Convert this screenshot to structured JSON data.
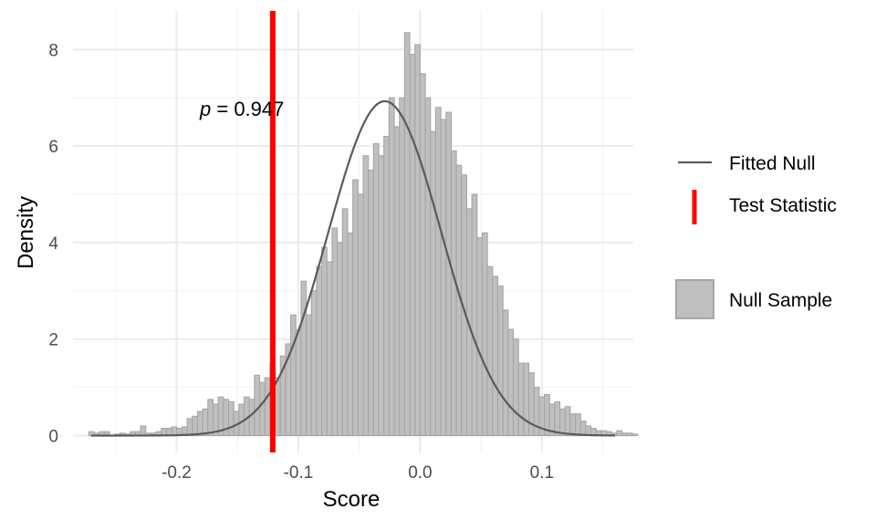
{
  "chart_data": {
    "type": "histogram",
    "xlabel": "Score",
    "ylabel": "Density",
    "xlim": [
      -0.285,
      0.175
    ],
    "ylim": [
      -0.35,
      8.8
    ],
    "x_ticks": [
      -0.2,
      -0.1,
      0.0,
      0.1
    ],
    "x_tick_labels": [
      "-0.2",
      "-0.1",
      "0.0",
      "0.1"
    ],
    "y_ticks": [
      0,
      2,
      4,
      6,
      8
    ],
    "y_tick_labels": [
      "0",
      "2",
      "4",
      "6",
      "8"
    ],
    "grid": true,
    "legend_position": "right",
    "annotation": {
      "p_symbol": "p",
      "p_text": " = 0.947",
      "x": -0.187,
      "y": 6.65
    },
    "test_statistic": -0.121,
    "fitted_null": {
      "mean": -0.029,
      "sd": 0.0465,
      "peak_density": 6.93
    },
    "histogram": {
      "bin_width": 0.00425,
      "start": -0.272,
      "counts": [
        0.08,
        0.05,
        0.08,
        0.08,
        0,
        0.03,
        0.05,
        0.03,
        0.08,
        0.08,
        0.2,
        0.05,
        0.05,
        0.08,
        0.15,
        0.15,
        0.18,
        0.15,
        0.18,
        0.35,
        0.4,
        0.5,
        0.55,
        0.75,
        0.65,
        0.8,
        0.75,
        0.7,
        0.5,
        0.65,
        0.8,
        0.75,
        1.25,
        1.1,
        1.2,
        1.5,
        1.2,
        1.65,
        1.9,
        2.5,
        2.2,
        3.2,
        2.5,
        3.0,
        3.5,
        3.9,
        3.6,
        4.3,
        4.0,
        4.7,
        4.2,
        5.3,
        5.0,
        5.8,
        5.5,
        6.05,
        5.8,
        6.2,
        7.0,
        6.4,
        7.0,
        8.35,
        7.9,
        8.1,
        7.5,
        7.0,
        6.3,
        6.8,
        6.55,
        6.7,
        5.9,
        5.6,
        5.4,
        4.7,
        5.0,
        4.1,
        4.2,
        3.5,
        3.3,
        3.1,
        2.6,
        2.2,
        2.0,
        1.5,
        1.5,
        1.3,
        1.0,
        0.8,
        0.85,
        0.65,
        0.7,
        0.55,
        0.6,
        0.45,
        0.45,
        0.3,
        0.2,
        0.15,
        0.1,
        0.1,
        0.08,
        0.05,
        0.1,
        0.05,
        0.05,
        0.03
      ]
    },
    "legend": [
      {
        "label": "Fitted Null",
        "kind": "line",
        "color": "#555555"
      },
      {
        "label": "Test Statistic",
        "kind": "vline",
        "color": "#ff0000"
      },
      {
        "label": "Null Sample",
        "kind": "fill",
        "color": "#bfbfbf"
      }
    ],
    "colors": {
      "bar_fill": "#bfbfbf",
      "bar_stroke": "#a6a6a6",
      "curve": "#5a5a5a",
      "test_line": "#ff0000",
      "grid_major": "#ebebeb",
      "grid_minor": "#f3f3f3"
    }
  }
}
